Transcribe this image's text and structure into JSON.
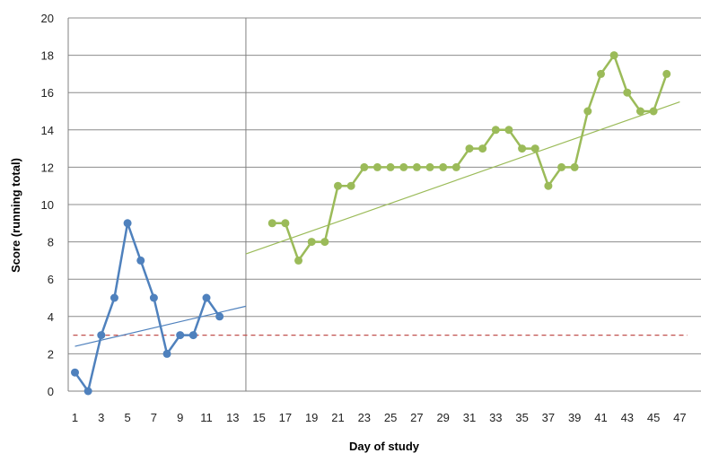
{
  "chart_data": {
    "type": "line",
    "xlabel": "Day of study",
    "ylabel": "Score (running total)",
    "xlim": [
      0,
      47
    ],
    "ylim": [
      0,
      20
    ],
    "x_ticks": [
      1,
      3,
      5,
      7,
      9,
      11,
      13,
      15,
      17,
      19,
      21,
      23,
      25,
      27,
      29,
      31,
      33,
      35,
      37,
      39,
      41,
      43,
      45,
      47
    ],
    "y_ticks": [
      0,
      2,
      4,
      6,
      8,
      10,
      12,
      14,
      16,
      18,
      20
    ],
    "grid": true,
    "legend": "none",
    "phase_divider_x": 14,
    "reference_line": {
      "y": 3,
      "color": "#c0504d",
      "style": "dashed"
    },
    "series": [
      {
        "color": "#4f81bd",
        "x": [
          1,
          2,
          3,
          4,
          5,
          6,
          7,
          8,
          9,
          10,
          11,
          12
        ],
        "values": [
          1,
          0,
          3,
          5,
          9,
          7,
          5,
          2,
          3,
          3,
          5,
          4
        ],
        "trendline": {
          "x": [
            1,
            14
          ],
          "y": [
            2.4,
            4.55
          ]
        }
      },
      {
        "color": "#9bbb59",
        "x": [
          16,
          17,
          18,
          19,
          20,
          21,
          22,
          23,
          24,
          25,
          26,
          27,
          28,
          29,
          30,
          31,
          32,
          33,
          34,
          35,
          36,
          37,
          38,
          39,
          40,
          41,
          42,
          43,
          44,
          45,
          46
        ],
        "values": [
          9,
          9,
          7,
          8,
          8,
          11,
          11,
          12,
          12,
          12,
          12,
          12,
          12,
          12,
          12,
          13,
          13,
          14,
          14,
          13,
          13,
          11,
          12,
          12,
          15,
          17,
          18,
          16,
          15,
          15,
          17
        ],
        "trendline": {
          "x": [
            14,
            47
          ],
          "y": [
            7.35,
            15.5
          ]
        }
      }
    ]
  }
}
